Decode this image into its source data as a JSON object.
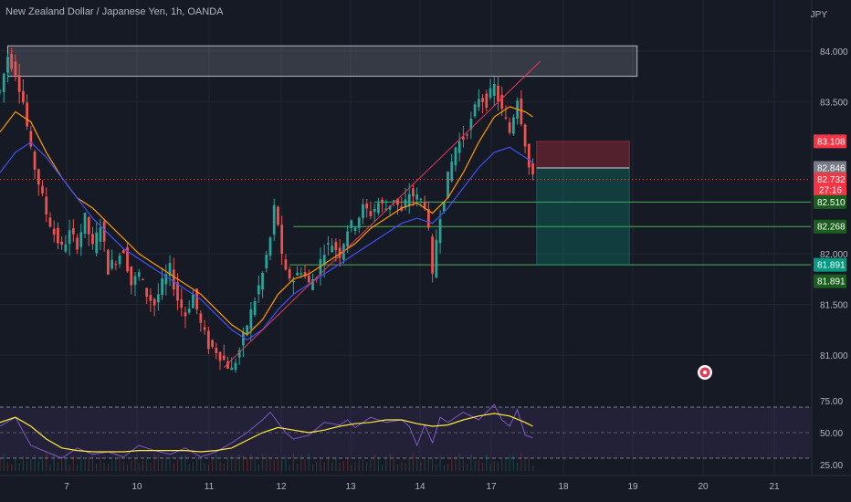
{
  "header": {
    "symbol_title": "New Zealand Dollar / Japanese Yen, 1h, OANDA",
    "currency": "JPY"
  },
  "colors": {
    "background": "#161a25",
    "grid": "#222633",
    "up": "#26a69a",
    "down": "#ef5350",
    "ema_fast": "#ff9800",
    "ema_slow": "#3f51f5",
    "trendline": "#e53956",
    "rsi": "#7e57c2",
    "rsi_ma": "#ffeb3b",
    "stop_zone": "#f23645",
    "target_zone": "#089981"
  },
  "chart_data": {
    "type": "candlestick",
    "instrument": "NZDJPY",
    "timeframe": "1h",
    "x_ticks": [
      "7",
      "10",
      "11",
      "12",
      "13",
      "14",
      "17",
      "18",
      "19",
      "20",
      "21"
    ],
    "y_ticks": [
      "84.000",
      "83.500",
      "82.000",
      "81.500",
      "81.000"
    ],
    "ylim": [
      80.65,
      84.25
    ],
    "price_path": [
      [
        0,
        83.6
      ],
      [
        2,
        83.95
      ],
      [
        4,
        83.8
      ],
      [
        6,
        83.5
      ],
      [
        8,
        83.0
      ],
      [
        10,
        82.7
      ],
      [
        12,
        82.4
      ],
      [
        14,
        82.2
      ],
      [
        16,
        82.05
      ],
      [
        18,
        82.2
      ],
      [
        20,
        82.1
      ],
      [
        22,
        82.35
      ],
      [
        24,
        82.05
      ],
      [
        26,
        82.3
      ],
      [
        28,
        81.85
      ],
      [
        30,
        81.95
      ],
      [
        32,
        82.05
      ],
      [
        34,
        81.7
      ],
      [
        36,
        81.8
      ],
      [
        38,
        81.6
      ],
      [
        40,
        81.5
      ],
      [
        42,
        81.7
      ],
      [
        44,
        81.85
      ],
      [
        46,
        81.55
      ],
      [
        48,
        81.4
      ],
      [
        50,
        81.6
      ],
      [
        52,
        81.3
      ],
      [
        54,
        81.1
      ],
      [
        56,
        81.05
      ],
      [
        58,
        80.95
      ],
      [
        60,
        80.85
      ],
      [
        62,
        81.05
      ],
      [
        64,
        81.3
      ],
      [
        66,
        81.55
      ],
      [
        68,
        81.8
      ],
      [
        70,
        82.15
      ],
      [
        71,
        82.45
      ],
      [
        72,
        82.3
      ],
      [
        73,
        81.95
      ],
      [
        74,
        81.8
      ],
      [
        76,
        81.75
      ],
      [
        78,
        81.85
      ],
      [
        80,
        81.7
      ],
      [
        82,
        81.8
      ],
      [
        84,
        82.05
      ],
      [
        86,
        82.1
      ],
      [
        88,
        82.0
      ],
      [
        90,
        82.25
      ],
      [
        92,
        82.3
      ],
      [
        94,
        82.45
      ],
      [
        96,
        82.4
      ],
      [
        98,
        82.5
      ],
      [
        100,
        82.45
      ],
      [
        102,
        82.55
      ],
      [
        104,
        82.4
      ],
      [
        106,
        82.6
      ],
      [
        108,
        82.55
      ],
      [
        110,
        82.5
      ],
      [
        111,
        82.2
      ],
      [
        112,
        81.75
      ],
      [
        113,
        82.15
      ],
      [
        114,
        82.4
      ],
      [
        116,
        82.75
      ],
      [
        118,
        83.05
      ],
      [
        120,
        83.15
      ],
      [
        122,
        83.3
      ],
      [
        124,
        83.55
      ],
      [
        126,
        83.5
      ],
      [
        128,
        83.65
      ],
      [
        130,
        83.4
      ],
      [
        132,
        83.2
      ],
      [
        134,
        83.55
      ],
      [
        136,
        83.1
      ],
      [
        137,
        82.85
      ],
      [
        138,
        82.73
      ]
    ],
    "ema_fast_path": [
      [
        0,
        83.2
      ],
      [
        4,
        83.4
      ],
      [
        8,
        83.3
      ],
      [
        12,
        83.0
      ],
      [
        16,
        82.75
      ],
      [
        20,
        82.55
      ],
      [
        24,
        82.45
      ],
      [
        28,
        82.3
      ],
      [
        32,
        82.15
      ],
      [
        36,
        82.0
      ],
      [
        40,
        81.9
      ],
      [
        44,
        81.8
      ],
      [
        48,
        81.7
      ],
      [
        52,
        81.6
      ],
      [
        56,
        81.45
      ],
      [
        60,
        81.3
      ],
      [
        64,
        81.2
      ],
      [
        68,
        81.35
      ],
      [
        72,
        81.6
      ],
      [
        76,
        81.75
      ],
      [
        80,
        81.8
      ],
      [
        84,
        81.9
      ],
      [
        88,
        82.0
      ],
      [
        92,
        82.1
      ],
      [
        96,
        82.25
      ],
      [
        100,
        82.35
      ],
      [
        104,
        82.45
      ],
      [
        108,
        82.5
      ],
      [
        112,
        82.4
      ],
      [
        116,
        82.55
      ],
      [
        120,
        82.8
      ],
      [
        124,
        83.1
      ],
      [
        128,
        83.35
      ],
      [
        132,
        83.45
      ],
      [
        136,
        83.4
      ],
      [
        138,
        83.35
      ]
    ],
    "ema_slow_path": [
      [
        0,
        82.8
      ],
      [
        4,
        83.0
      ],
      [
        8,
        83.1
      ],
      [
        12,
        82.95
      ],
      [
        16,
        82.75
      ],
      [
        20,
        82.55
      ],
      [
        24,
        82.35
      ],
      [
        28,
        82.2
      ],
      [
        32,
        82.05
      ],
      [
        36,
        81.95
      ],
      [
        40,
        81.85
      ],
      [
        44,
        81.75
      ],
      [
        48,
        81.65
      ],
      [
        52,
        81.55
      ],
      [
        56,
        81.4
      ],
      [
        60,
        81.25
      ],
      [
        64,
        81.15
      ],
      [
        68,
        81.25
      ],
      [
        72,
        81.45
      ],
      [
        76,
        81.6
      ],
      [
        80,
        81.7
      ],
      [
        84,
        81.8
      ],
      [
        88,
        81.9
      ],
      [
        92,
        82.0
      ],
      [
        96,
        82.1
      ],
      [
        100,
        82.2
      ],
      [
        104,
        82.3
      ],
      [
        108,
        82.35
      ],
      [
        112,
        82.3
      ],
      [
        116,
        82.45
      ],
      [
        120,
        82.65
      ],
      [
        124,
        82.85
      ],
      [
        128,
        83.0
      ],
      [
        132,
        83.05
      ],
      [
        136,
        82.95
      ],
      [
        138,
        82.9
      ]
    ],
    "trendline": [
      [
        58,
        80.88
      ],
      [
        140,
        83.9
      ]
    ],
    "resistance_zone": {
      "from": 2,
      "to": 165,
      "top": 84.05,
      "bottom": 83.75
    },
    "horizontal_levels": [
      {
        "price": 82.51,
        "from": 97
      },
      {
        "price": 82.268,
        "from": 76
      },
      {
        "price": 81.891,
        "from": 75
      }
    ],
    "position": {
      "from": 139,
      "to": 163,
      "entry": 82.846,
      "stop": 83.108,
      "target": 81.891
    },
    "price_tags": [
      {
        "price": 83.108,
        "label": "83.108",
        "color": "#f23645"
      },
      {
        "price": 82.846,
        "label": "82.846",
        "color": "#787b86"
      },
      {
        "price": 82.732,
        "label": "82.732",
        "sub": "27:16",
        "color": "#f23645"
      },
      {
        "price": 82.51,
        "label": "82.510",
        "color": "#1b5e20"
      },
      {
        "price": 82.268,
        "label": "82.268",
        "color": "#1b5e20"
      },
      {
        "price": 81.891,
        "label": "81.891",
        "color": "#089981"
      },
      {
        "price": 81.891,
        "label": "81.891",
        "color": "#1b5e20",
        "offset": 1
      }
    ],
    "rsi": {
      "levels": [
        "75.00",
        "50.00",
        "25.00"
      ],
      "level_values": [
        75,
        50,
        25
      ],
      "band": [
        70,
        30
      ],
      "ylim": [
        20,
        80
      ],
      "values": [
        [
          0,
          55
        ],
        [
          4,
          62
        ],
        [
          8,
          40
        ],
        [
          12,
          35
        ],
        [
          16,
          30
        ],
        [
          20,
          38
        ],
        [
          24,
          33
        ],
        [
          28,
          35
        ],
        [
          32,
          31
        ],
        [
          36,
          40
        ],
        [
          40,
          36
        ],
        [
          44,
          33
        ],
        [
          48,
          38
        ],
        [
          52,
          31
        ],
        [
          56,
          35
        ],
        [
          60,
          42
        ],
        [
          64,
          50
        ],
        [
          68,
          60
        ],
        [
          70,
          66
        ],
        [
          72,
          58
        ],
        [
          74,
          50
        ],
        [
          76,
          45
        ],
        [
          80,
          48
        ],
        [
          84,
          58
        ],
        [
          88,
          56
        ],
        [
          90,
          60
        ],
        [
          92,
          54
        ],
        [
          96,
          62
        ],
        [
          100,
          58
        ],
        [
          104,
          60
        ],
        [
          106,
          55
        ],
        [
          108,
          40
        ],
        [
          110,
          56
        ],
        [
          112,
          42
        ],
        [
          114,
          62
        ],
        [
          116,
          58
        ],
        [
          120,
          66
        ],
        [
          124,
          60
        ],
        [
          128,
          72
        ],
        [
          130,
          60
        ],
        [
          132,
          55
        ],
        [
          134,
          68
        ],
        [
          136,
          48
        ],
        [
          138,
          46
        ]
      ],
      "ma_values": [
        [
          0,
          58
        ],
        [
          4,
          62
        ],
        [
          8,
          55
        ],
        [
          12,
          45
        ],
        [
          16,
          38
        ],
        [
          20,
          36
        ],
        [
          24,
          35
        ],
        [
          28,
          35
        ],
        [
          32,
          35
        ],
        [
          36,
          36
        ],
        [
          40,
          36
        ],
        [
          44,
          36
        ],
        [
          48,
          36
        ],
        [
          52,
          35
        ],
        [
          56,
          36
        ],
        [
          60,
          38
        ],
        [
          64,
          44
        ],
        [
          68,
          50
        ],
        [
          72,
          54
        ],
        [
          76,
          52
        ],
        [
          80,
          50
        ],
        [
          84,
          52
        ],
        [
          88,
          55
        ],
        [
          92,
          57
        ],
        [
          96,
          58
        ],
        [
          100,
          60
        ],
        [
          104,
          60
        ],
        [
          108,
          57
        ],
        [
          112,
          55
        ],
        [
          116,
          56
        ],
        [
          120,
          60
        ],
        [
          124,
          63
        ],
        [
          128,
          65
        ],
        [
          132,
          63
        ],
        [
          136,
          58
        ],
        [
          138,
          55
        ]
      ]
    }
  }
}
